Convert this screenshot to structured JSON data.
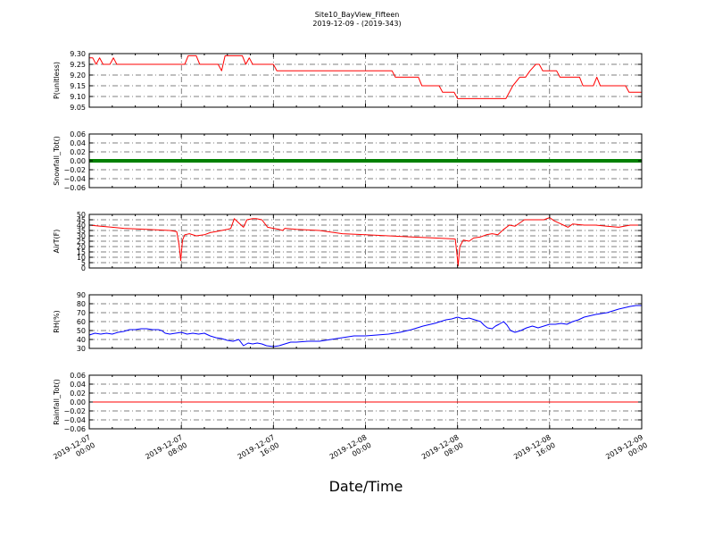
{
  "chart_data": [
    {
      "type": "line",
      "ylabel": "P(unitless)",
      "ylim": [
        9.05,
        9.3
      ],
      "yticks": [
        "9.05",
        "9.10",
        "9.15",
        "9.20",
        "9.25",
        "9.30"
      ],
      "grid": true,
      "series": [
        {
          "color": "#ff0000",
          "points": [
            [
              0,
              9.28
            ],
            [
              0.3,
              9.28
            ],
            [
              0.6,
              9.25
            ],
            [
              0.9,
              9.28
            ],
            [
              1.2,
              9.25
            ],
            [
              1.8,
              9.25
            ],
            [
              2.1,
              9.28
            ],
            [
              2.4,
              9.25
            ],
            [
              5,
              9.25
            ],
            [
              8,
              9.25
            ],
            [
              8.3,
              9.25
            ],
            [
              8.6,
              9.29
            ],
            [
              9.3,
              9.29
            ],
            [
              9.6,
              9.25
            ],
            [
              11.2,
              9.25
            ],
            [
              11.5,
              9.22
            ],
            [
              11.8,
              9.29
            ],
            [
              13.3,
              9.29
            ],
            [
              13.6,
              9.25
            ],
            [
              13.9,
              9.28
            ],
            [
              14.2,
              9.25
            ],
            [
              16,
              9.25
            ],
            [
              16.3,
              9.22
            ],
            [
              20,
              9.22
            ],
            [
              25,
              9.22
            ],
            [
              26.3,
              9.22
            ],
            [
              26.6,
              9.19
            ],
            [
              28.6,
              9.19
            ],
            [
              28.9,
              9.15
            ],
            [
              30.4,
              9.15
            ],
            [
              30.7,
              9.12
            ],
            [
              31.7,
              9.12
            ],
            [
              32,
              9.09
            ],
            [
              36.2,
              9.09
            ],
            [
              36.5,
              9.12
            ],
            [
              36.8,
              9.15
            ],
            [
              37.4,
              9.19
            ],
            [
              37.9,
              9.19
            ],
            [
              38.3,
              9.22
            ],
            [
              38.8,
              9.25
            ],
            [
              39.1,
              9.25
            ],
            [
              39.4,
              9.22
            ],
            [
              40.6,
              9.22
            ],
            [
              40.9,
              9.19
            ],
            [
              42.6,
              9.19
            ],
            [
              42.9,
              9.15
            ],
            [
              43.8,
              9.15
            ],
            [
              44.1,
              9.19
            ],
            [
              44.4,
              9.15
            ],
            [
              46.6,
              9.15
            ],
            [
              46.9,
              9.12
            ],
            [
              48,
              9.12
            ]
          ]
        }
      ]
    },
    {
      "type": "scatter",
      "ylabel": "Snowfall_Tot()",
      "ylim": [
        -0.06,
        0.06
      ],
      "yticks": [
        "−0.06",
        "−0.04",
        "−0.02",
        "0.00",
        "0.02",
        "0.04",
        "0.06"
      ],
      "grid": true,
      "series": [
        {
          "color": "#008000",
          "points": [
            [
              0,
              0
            ],
            [
              48,
              0
            ]
          ]
        }
      ]
    },
    {
      "type": "line",
      "ylabel": "AirT(F)",
      "ylim": [
        0,
        50
      ],
      "yticks": [
        "0",
        "5",
        "10",
        "15",
        "20",
        "25",
        "30",
        "35",
        "40",
        "45",
        "50"
      ],
      "grid": true,
      "series": [
        {
          "color": "#ff0000",
          "points": [
            [
              0,
              40
            ],
            [
              1,
              39
            ],
            [
              2,
              38
            ],
            [
              3,
              37
            ],
            [
              5,
              36
            ],
            [
              7,
              35
            ],
            [
              7.6,
              34
            ],
            [
              7.8,
              22
            ],
            [
              7.95,
              7
            ],
            [
              8.1,
              26
            ],
            [
              8.3,
              31
            ],
            [
              8.7,
              32
            ],
            [
              9.3,
              30
            ],
            [
              10,
              31
            ],
            [
              10.5,
              33
            ],
            [
              11,
              34
            ],
            [
              12,
              36
            ],
            [
              12.3,
              37
            ],
            [
              12.6,
              46
            ],
            [
              13,
              42
            ],
            [
              13.4,
              38
            ],
            [
              13.7,
              45
            ],
            [
              14.2,
              46
            ],
            [
              14.5,
              46
            ],
            [
              15,
              45
            ],
            [
              15.5,
              38
            ],
            [
              16,
              37
            ],
            [
              16.5,
              36
            ],
            [
              16.8,
              35
            ],
            [
              17,
              37
            ],
            [
              18,
              36
            ],
            [
              20,
              35
            ],
            [
              22,
              32
            ],
            [
              24,
              31
            ],
            [
              26,
              30
            ],
            [
              28,
              29
            ],
            [
              30,
              28
            ],
            [
              31,
              27.5
            ],
            [
              31.8,
              27
            ],
            [
              31.95,
              13
            ],
            [
              32.05,
              2
            ],
            [
              32.2,
              20
            ],
            [
              32.5,
              26
            ],
            [
              33,
              25
            ],
            [
              33.4,
              28
            ],
            [
              34,
              29
            ],
            [
              34.5,
              31
            ],
            [
              35,
              32
            ],
            [
              35.5,
              31
            ],
            [
              36,
              36
            ],
            [
              36.5,
              40
            ],
            [
              37,
              39
            ],
            [
              37.4,
              42
            ],
            [
              37.8,
              45
            ],
            [
              38.5,
              45
            ],
            [
              39.5,
              45
            ],
            [
              40,
              47
            ],
            [
              40.4,
              44
            ],
            [
              40.8,
              42
            ],
            [
              41.2,
              40
            ],
            [
              41.6,
              38
            ],
            [
              42,
              41
            ],
            [
              43,
              40
            ],
            [
              44,
              40
            ],
            [
              45,
              39
            ],
            [
              46,
              38
            ],
            [
              47,
              40
            ],
            [
              48,
              40
            ]
          ]
        }
      ]
    },
    {
      "type": "line",
      "ylabel": "RH(%)",
      "ylim": [
        30,
        90
      ],
      "yticks": [
        "30",
        "40",
        "50",
        "60",
        "70",
        "80",
        "90"
      ],
      "grid": true,
      "series": [
        {
          "color": "#0000ff",
          "points": [
            [
              0,
              45
            ],
            [
              0.5,
              47
            ],
            [
              1,
              46
            ],
            [
              1.5,
              47
            ],
            [
              2,
              46
            ],
            [
              2.5,
              48
            ],
            [
              3,
              49
            ],
            [
              3.5,
              51
            ],
            [
              4,
              51
            ],
            [
              4.5,
              52
            ],
            [
              5,
              52
            ],
            [
              5.5,
              51
            ],
            [
              6,
              51
            ],
            [
              6.3,
              50
            ],
            [
              6.6,
              47
            ],
            [
              7,
              46
            ],
            [
              7.5,
              47
            ],
            [
              8,
              48
            ],
            [
              8.5,
              46
            ],
            [
              9,
              47
            ],
            [
              9.5,
              46
            ],
            [
              10,
              47
            ],
            [
              10.5,
              44
            ],
            [
              11,
              42
            ],
            [
              11.5,
              41
            ],
            [
              12,
              39
            ],
            [
              12.5,
              38
            ],
            [
              13,
              40
            ],
            [
              13.4,
              33
            ],
            [
              13.8,
              36
            ],
            [
              14.2,
              35
            ],
            [
              14.6,
              36
            ],
            [
              15,
              35
            ],
            [
              15.4,
              33
            ],
            [
              16,
              32
            ],
            [
              16.5,
              33
            ],
            [
              17,
              35
            ],
            [
              17.5,
              37
            ],
            [
              18,
              37
            ],
            [
              19,
              38
            ],
            [
              20,
              38
            ],
            [
              21,
              40
            ],
            [
              22,
              42
            ],
            [
              23,
              44
            ],
            [
              24,
              44
            ],
            [
              25,
              45
            ],
            [
              26,
              46
            ],
            [
              27,
              48
            ],
            [
              28,
              51
            ],
            [
              29,
              55
            ],
            [
              30,
              58
            ],
            [
              31,
              62
            ],
            [
              31.5,
              63
            ],
            [
              32,
              65
            ],
            [
              32.5,
              63
            ],
            [
              33,
              64
            ],
            [
              33.5,
              62
            ],
            [
              34,
              60
            ],
            [
              34.3,
              56
            ],
            [
              34.6,
              53
            ],
            [
              35,
              52
            ],
            [
              35.3,
              55
            ],
            [
              35.6,
              57
            ],
            [
              36,
              60
            ],
            [
              36.3,
              56
            ],
            [
              36.6,
              50
            ],
            [
              37,
              48
            ],
            [
              37.5,
              50
            ],
            [
              38,
              53
            ],
            [
              38.5,
              55
            ],
            [
              39,
              53
            ],
            [
              39.5,
              55
            ],
            [
              40,
              57
            ],
            [
              40.5,
              57
            ],
            [
              41,
              58
            ],
            [
              41.5,
              57
            ],
            [
              42,
              60
            ],
            [
              42.5,
              62
            ],
            [
              43,
              65
            ],
            [
              44,
              68
            ],
            [
              45,
              70
            ],
            [
              46,
              74
            ],
            [
              47,
              77
            ],
            [
              47.5,
              78
            ],
            [
              48,
              78
            ]
          ]
        }
      ]
    },
    {
      "type": "line",
      "ylabel": "Rainfall_Tot()",
      "ylim": [
        -0.06,
        0.06
      ],
      "yticks": [
        "−0.06",
        "−0.04",
        "−0.02",
        "0.00",
        "0.02",
        "0.04",
        "0.06"
      ],
      "grid": true,
      "series": [
        {
          "color": "#ff0000",
          "points": [
            [
              0,
              0
            ],
            [
              48,
              0
            ]
          ]
        }
      ]
    }
  ],
  "title_lines": [
    "Site10_BayView_Fifteen",
    "2019-12-09 - (2019-343)"
  ],
  "x_axis": {
    "xlabel": "Date/Time",
    "range_hours": [
      0,
      48
    ],
    "ticks": [
      {
        "hour": 0,
        "lines": [
          "2019-12-07",
          "00:00"
        ]
      },
      {
        "hour": 8,
        "lines": [
          "2019-12-07",
          "08:00"
        ]
      },
      {
        "hour": 16,
        "lines": [
          "2019-12-07",
          "16:00"
        ]
      },
      {
        "hour": 24,
        "lines": [
          "2019-12-08",
          "00:00"
        ]
      },
      {
        "hour": 32,
        "lines": [
          "2019-12-08",
          "08:00"
        ]
      },
      {
        "hour": 40,
        "lines": [
          "2019-12-08",
          "16:00"
        ]
      },
      {
        "hour": 48,
        "lines": [
          "2019-12-09",
          "00:00"
        ]
      }
    ]
  }
}
